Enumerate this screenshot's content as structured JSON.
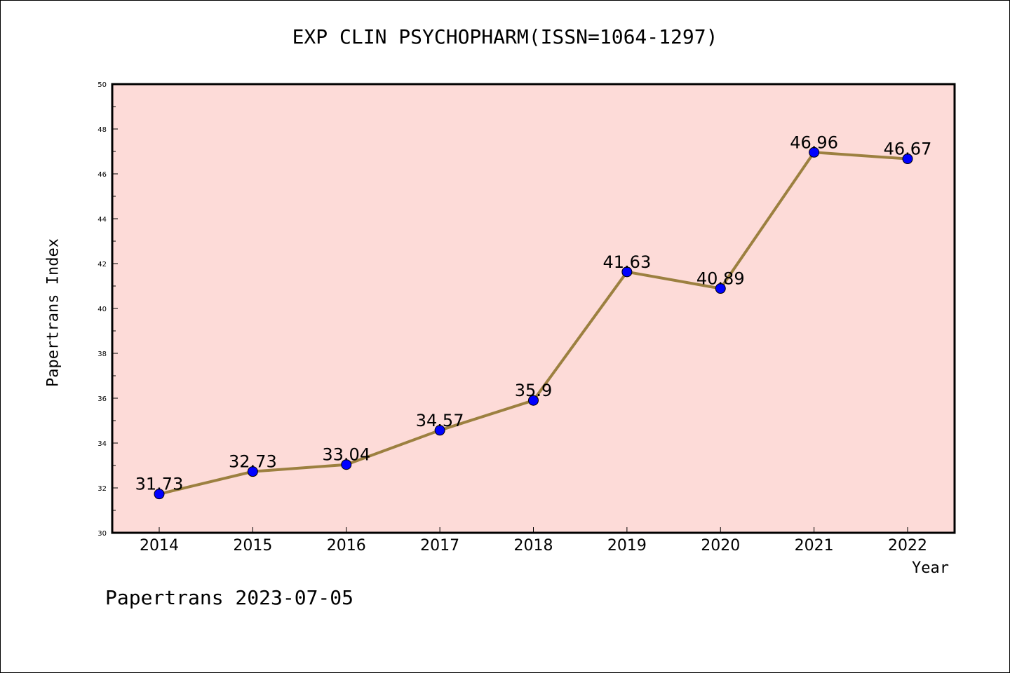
{
  "chart_data": {
    "type": "line",
    "title": "EXP CLIN PSYCHOPHARM(ISSN=1064-1297)",
    "xlabel": "Year",
    "ylabel": "Papertrans Index",
    "categories": [
      "2014",
      "2015",
      "2016",
      "2017",
      "2018",
      "2019",
      "2020",
      "2021",
      "2022"
    ],
    "series": [
      {
        "name": "Papertrans Index",
        "values": [
          31.73,
          32.73,
          33.04,
          34.57,
          35.9,
          41.63,
          40.89,
          46.96,
          46.67
        ],
        "labels": [
          "31.73",
          "32.73",
          "33.04",
          "34.57",
          "35.9",
          "41.63",
          "40.89",
          "46.96",
          "46.67"
        ]
      }
    ],
    "ylim": [
      30,
      50
    ],
    "yticks": [
      "30",
      "32",
      "34",
      "36",
      "38",
      "40",
      "42",
      "44",
      "46",
      "48",
      "50"
    ],
    "grid": false,
    "colors": {
      "plot_background": "#fddbd8",
      "line": "#9c8040",
      "marker": "#0000ff"
    }
  },
  "footer": "Papertrans 2023-07-05"
}
